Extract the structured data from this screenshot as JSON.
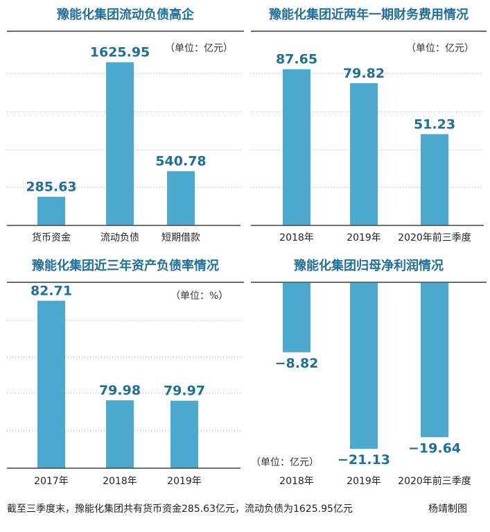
{
  "colors": {
    "bar": "#4aa9cc",
    "value": "#1f6f97",
    "grid": "#9a9a9a",
    "axis": "#444444"
  },
  "footnote": "截至三季度末，豫能化集团共有货币资金285.63亿元，流动负债为1625.95亿元",
  "credit": "杨靖制图",
  "chart_data": [
    {
      "type": "bar",
      "title": "豫能化集团流动负债高企",
      "unit": "（单位：亿元）",
      "categories": [
        "货币资金",
        "流动负债",
        "短期借款"
      ],
      "values": [
        285.63,
        1625.95,
        540.78
      ],
      "labels": [
        "285.63",
        "1625.95",
        "540.78"
      ],
      "ylim": [
        0,
        1900
      ]
    },
    {
      "type": "bar",
      "title": "豫能化集团近两年一期财务费用情况",
      "unit": "（单位：亿元）",
      "categories": [
        "2018年",
        "2019年",
        "2020年前三季度"
      ],
      "values": [
        87.65,
        79.82,
        51.23
      ],
      "labels": [
        "87.65",
        "79.82",
        "51.23"
      ],
      "ylim": [
        0,
        107
      ]
    },
    {
      "type": "bar",
      "title": "豫能化集团近三年资产负债率情况",
      "unit": "（单位：%）",
      "categories": [
        "2017年",
        "2018年",
        "2019年"
      ],
      "values": [
        82.71,
        79.98,
        79.97
      ],
      "labels": [
        "82.71",
        "79.98",
        "79.97"
      ],
      "ylim": [
        78.12,
        83.12
      ]
    },
    {
      "type": "bar",
      "title": "豫能化集团归母净利润情况",
      "unit": "（单位：亿元）",
      "categories": [
        "2018年",
        "2019年",
        "2020年前三季度"
      ],
      "values": [
        -8.82,
        -21.13,
        -19.64
      ],
      "labels": [
        "−8.82",
        "−21.13",
        "−19.64"
      ],
      "ylim": [
        -22,
        0
      ]
    }
  ]
}
